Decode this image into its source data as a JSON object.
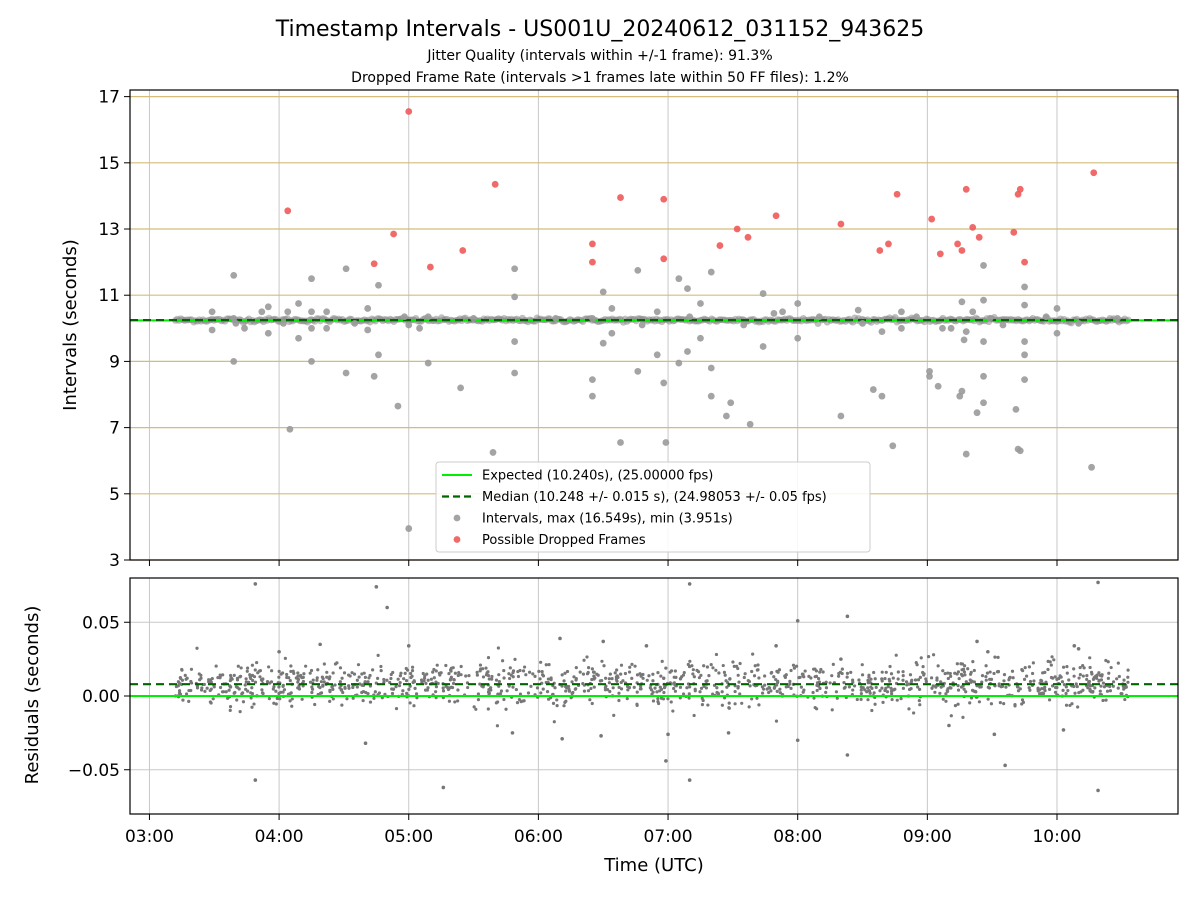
{
  "chart_data": {
    "type": "scatter",
    "title": "Timestamp Intervals - US001U_20240612_031152_943625",
    "subtitle_lines": [
      "Jitter Quality (intervals within +/-1 frame): 91.3%",
      "Dropped Frame Rate (intervals >1 frames late within 50 FF files): 1.2%"
    ],
    "xlabel": "Time (UTC)",
    "x_ticks": [
      "03:00",
      "04:00",
      "05:00",
      "06:00",
      "07:00",
      "08:00",
      "09:00",
      "10:00"
    ],
    "x_range": [
      "02:51",
      "10:56"
    ],
    "legend_placement": "lower-center",
    "top_panel": {
      "ylabel": "Intervals (seconds)",
      "ylim": [
        3,
        17.2
      ],
      "y_ticks": [
        "3",
        "5",
        "7",
        "9",
        "11",
        "13",
        "15",
        "17"
      ],
      "hlines": [
        3,
        5,
        7,
        9,
        11,
        13,
        15,
        17
      ],
      "hline_color": "#d4bd7a",
      "expected": 10.24,
      "median": 10.248,
      "expected_color": "#00ee00",
      "median_color": "#006400",
      "legend": [
        {
          "label": "Expected (10.240s), (25.00000 fps)",
          "kind": "line",
          "color": "#00ee00"
        },
        {
          "label": "Median (10.248 +/- 0.015 s), (24.98053 +/- 0.05 fps)",
          "kind": "dashed",
          "color": "#006400"
        },
        {
          "label": "Intervals, max (16.549s), min (3.951s)",
          "kind": "dot",
          "color": "#9a9a9a"
        },
        {
          "label": "Possible Dropped Frames",
          "kind": "dot",
          "color": "#f05a5a"
        }
      ],
      "series": [
        {
          "name": "Intervals, max (16.549s), min (3.951s)",
          "color": "#9a9a9a",
          "points": [
            [
              "03:29",
              10.5
            ],
            [
              "03:29",
              9.95
            ],
            [
              "03:39",
              11.6
            ],
            [
              "03:39",
              9.0
            ],
            [
              "03:39",
              10.3
            ],
            [
              "03:44",
              10.0
            ],
            [
              "03:52",
              10.5
            ],
            [
              "03:55",
              10.65
            ],
            [
              "03:55",
              9.85
            ],
            [
              "04:04",
              10.5
            ],
            [
              "04:05",
              6.95
            ],
            [
              "04:09",
              10.75
            ],
            [
              "04:09",
              9.7
            ],
            [
              "04:15",
              11.5
            ],
            [
              "04:15",
              9.0
            ],
            [
              "04:15",
              10.5
            ],
            [
              "04:15",
              10.0
            ],
            [
              "04:22",
              10.5
            ],
            [
              "04:22",
              10.0
            ],
            [
              "04:31",
              11.8
            ],
            [
              "04:31",
              8.65
            ],
            [
              "04:41",
              10.6
            ],
            [
              "04:41",
              9.95
            ],
            [
              "04:44",
              8.55
            ],
            [
              "04:46",
              11.3
            ],
            [
              "04:46",
              9.2
            ],
            [
              "04:55",
              7.65
            ],
            [
              "05:00",
              3.95
            ],
            [
              "05:00",
              10.1
            ],
            [
              "05:05",
              10.0
            ],
            [
              "05:09",
              8.95
            ],
            [
              "05:09",
              10.35
            ],
            [
              "05:24",
              8.2
            ],
            [
              "05:39",
              6.25
            ],
            [
              "05:49",
              11.8
            ],
            [
              "05:49",
              10.95
            ],
            [
              "05:49",
              9.6
            ],
            [
              "05:49",
              8.65
            ],
            [
              "06:25",
              8.45
            ],
            [
              "06:25",
              7.95
            ],
            [
              "06:25",
              10.3
            ],
            [
              "06:30",
              9.55
            ],
            [
              "06:30",
              11.1
            ],
            [
              "06:34",
              10.6
            ],
            [
              "06:34",
              9.85
            ],
            [
              "06:38",
              6.55
            ],
            [
              "06:46",
              11.75
            ],
            [
              "06:46",
              8.7
            ],
            [
              "06:55",
              10.5
            ],
            [
              "06:55",
              9.2
            ],
            [
              "06:58",
              8.35
            ],
            [
              "06:59",
              6.55
            ],
            [
              "07:05",
              11.5
            ],
            [
              "07:05",
              8.95
            ],
            [
              "07:09",
              11.2
            ],
            [
              "07:09",
              9.3
            ],
            [
              "07:15",
              10.75
            ],
            [
              "07:15",
              9.7
            ],
            [
              "07:20",
              11.7
            ],
            [
              "07:20",
              8.8
            ],
            [
              "07:20",
              7.95
            ],
            [
              "07:27",
              7.35
            ],
            [
              "07:29",
              7.75
            ],
            [
              "07:38",
              7.1
            ],
            [
              "07:44",
              11.05
            ],
            [
              "07:44",
              9.45
            ],
            [
              "07:49",
              10.45
            ],
            [
              "07:53",
              10.5
            ],
            [
              "08:00",
              10.75
            ],
            [
              "08:00",
              9.7
            ],
            [
              "08:20",
              7.35
            ],
            [
              "08:28",
              10.55
            ],
            [
              "08:35",
              8.15
            ],
            [
              "08:39",
              7.95
            ],
            [
              "08:44",
              6.45
            ],
            [
              "08:39",
              9.9
            ],
            [
              "08:48",
              10.5
            ],
            [
              "08:48",
              10.0
            ],
            [
              "09:01",
              8.7
            ],
            [
              "09:01",
              8.55
            ],
            [
              "09:05",
              8.25
            ],
            [
              "09:07",
              10.0
            ],
            [
              "09:11",
              10.0
            ],
            [
              "09:15",
              7.95
            ],
            [
              "09:16",
              8.1
            ],
            [
              "09:16",
              10.8
            ],
            [
              "09:17",
              9.65
            ],
            [
              "09:18",
              6.2
            ],
            [
              "09:18",
              9.9
            ],
            [
              "09:21",
              10.5
            ],
            [
              "09:23",
              7.45
            ],
            [
              "09:26",
              11.9
            ],
            [
              "09:26",
              10.85
            ],
            [
              "09:26",
              9.6
            ],
            [
              "09:26",
              8.55
            ],
            [
              "09:26",
              7.75
            ],
            [
              "09:29",
              10.3
            ],
            [
              "09:41",
              7.55
            ],
            [
              "09:42",
              6.35
            ],
            [
              "09:43",
              6.3
            ],
            [
              "09:45",
              11.25
            ],
            [
              "09:45",
              10.7
            ],
            [
              "09:45",
              9.6
            ],
            [
              "09:45",
              9.2
            ],
            [
              "09:45",
              8.45
            ],
            [
              "10:00",
              10.6
            ],
            [
              "10:00",
              9.85
            ],
            [
              "10:16",
              5.8
            ],
            [
              "03:40",
              10.15
            ],
            [
              "04:02",
              10.15
            ],
            [
              "04:35",
              10.15
            ],
            [
              "04:58",
              10.35
            ],
            [
              "05:30",
              10.3
            ],
            [
              "06:08",
              10.3
            ],
            [
              "06:48",
              10.1
            ],
            [
              "07:10",
              10.35
            ],
            [
              "07:35",
              10.1
            ],
            [
              "08:10",
              10.35
            ],
            [
              "08:30",
              10.15
            ],
            [
              "08:55",
              10.35
            ],
            [
              "09:35",
              10.1
            ],
            [
              "09:55",
              10.35
            ],
            [
              "10:10",
              10.15
            ],
            [
              "10:28",
              10.3
            ]
          ]
        },
        {
          "name": "Possible Dropped Frames",
          "color": "#f05a5a",
          "points": [
            [
              "04:04",
              13.55
            ],
            [
              "04:44",
              11.95
            ],
            [
              "04:53",
              12.85
            ],
            [
              "05:00",
              16.55
            ],
            [
              "05:10",
              11.85
            ],
            [
              "05:25",
              12.35
            ],
            [
              "05:40",
              14.35
            ],
            [
              "06:25",
              12.55
            ],
            [
              "06:25",
              12.0
            ],
            [
              "06:38",
              13.95
            ],
            [
              "06:58",
              13.9
            ],
            [
              "06:58",
              12.1
            ],
            [
              "07:24",
              12.5
            ],
            [
              "07:32",
              13.0
            ],
            [
              "07:37",
              12.75
            ],
            [
              "07:50",
              13.4
            ],
            [
              "08:20",
              13.15
            ],
            [
              "08:38",
              12.35
            ],
            [
              "08:42",
              12.55
            ],
            [
              "08:46",
              14.05
            ],
            [
              "09:02",
              13.3
            ],
            [
              "09:06",
              12.25
            ],
            [
              "09:14",
              12.55
            ],
            [
              "09:16",
              12.35
            ],
            [
              "09:18",
              14.2
            ],
            [
              "09:21",
              13.05
            ],
            [
              "09:24",
              12.75
            ],
            [
              "09:40",
              12.9
            ],
            [
              "09:42",
              14.05
            ],
            [
              "09:43",
              14.2
            ],
            [
              "09:45",
              12.0
            ],
            [
              "10:17",
              14.7
            ]
          ]
        }
      ]
    },
    "bottom_panel": {
      "ylabel": "Residuals (seconds)",
      "ylim": [
        -0.08,
        0.08
      ],
      "y_ticks": [
        "−0.05",
        "0.00",
        "0.05"
      ],
      "y_tick_values": [
        -0.05,
        0.0,
        0.05
      ],
      "expected": 0.0,
      "median": 0.008,
      "point_color": "#777777",
      "series": [
        {
          "name": "Residuals",
          "color": "#777777",
          "points": [
            [
              "03:49",
              0.076
            ],
            [
              "04:45",
              0.074
            ],
            [
              "04:50",
              0.06
            ],
            [
              "03:49",
              -0.057
            ],
            [
              "05:16",
              -0.062
            ],
            [
              "06:59",
              -0.044
            ],
            [
              "07:10",
              0.076
            ],
            [
              "07:10",
              -0.057
            ],
            [
              "08:00",
              -0.03
            ],
            [
              "08:00",
              0.051
            ],
            [
              "08:23",
              -0.04
            ],
            [
              "08:23",
              0.054
            ],
            [
              "09:36",
              -0.047
            ],
            [
              "10:19",
              0.077
            ],
            [
              "10:19",
              -0.064
            ],
            [
              "05:00",
              0.034
            ],
            [
              "06:10",
              0.039
            ],
            [
              "06:30",
              0.037
            ],
            [
              "06:50",
              0.034
            ],
            [
              "07:50",
              0.034
            ],
            [
              "08:20",
              0.025
            ],
            [
              "09:23",
              0.037
            ],
            [
              "09:10",
              -0.02
            ],
            [
              "05:48",
              -0.025
            ],
            [
              "06:11",
              -0.029
            ],
            [
              "06:29",
              -0.027
            ],
            [
              "04:40",
              -0.032
            ],
            [
              "07:00",
              -0.026
            ],
            [
              "09:31",
              -0.026
            ],
            [
              "10:03",
              -0.023
            ],
            [
              "10:08",
              0.034
            ],
            [
              "10:10",
              0.032
            ],
            [
              "09:28",
              0.03
            ],
            [
              "07:28",
              -0.025
            ],
            [
              "04:00",
              0.03
            ],
            [
              "04:19",
              0.035
            ]
          ]
        }
      ]
    }
  }
}
